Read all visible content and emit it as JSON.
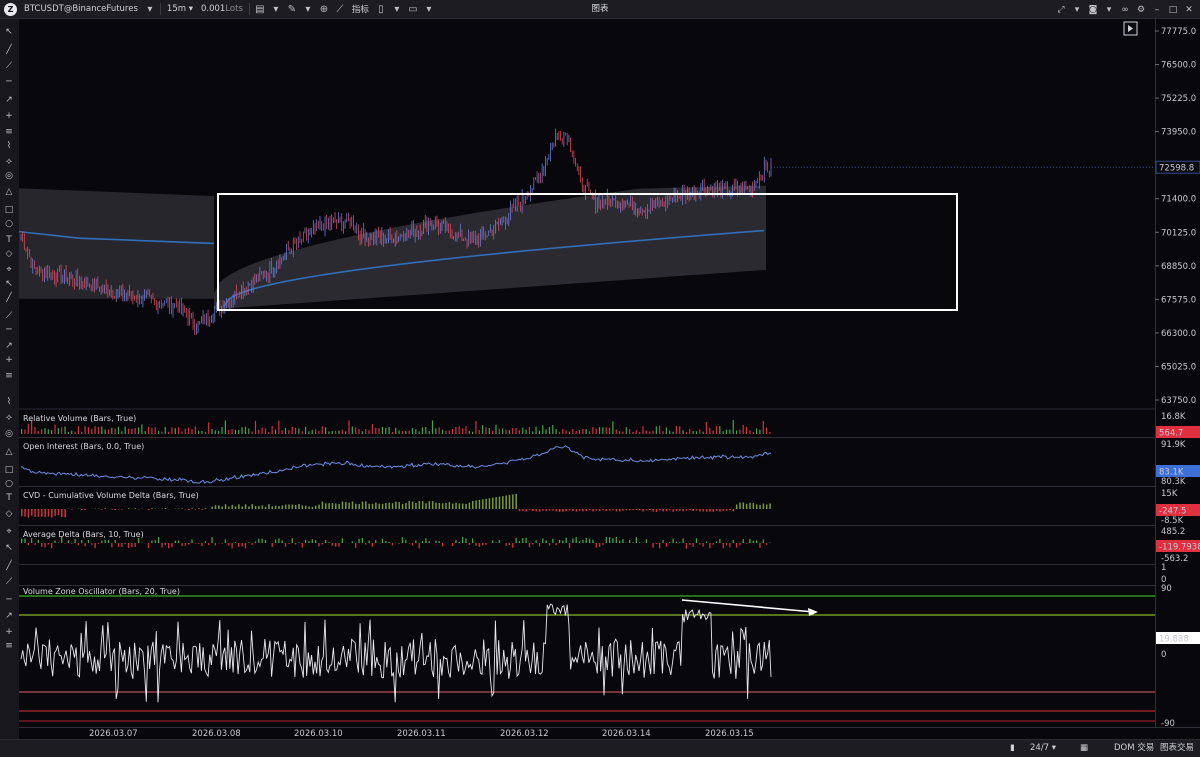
{
  "toolbar": {
    "symbol": "BTCUSDT@BinanceFutures",
    "timeframe": "15m",
    "lot_value": "0.001",
    "lot_unit": "Lots",
    "indicators_label": "指标",
    "window_title": "图表"
  },
  "price_axis": {
    "ticks": [
      "77775.0",
      "76500.0",
      "75225.0",
      "73950.0",
      "71400.0",
      "70125.0",
      "68850.0",
      "67575.0",
      "66300.0",
      "65025.0",
      "63750.0"
    ],
    "last_price": "72598.8",
    "last_price_color": "#c8283c"
  },
  "panes": {
    "relative_volume": {
      "title": "Relative Volume (Bars, True)",
      "axis_top": "16.8K",
      "current": "564.7",
      "current_color": "#e0303f"
    },
    "open_interest": {
      "title": "Open Interest (Bars, 0.0, True)",
      "axis_top": "91.9K",
      "current": "83.1K",
      "axis_bottom": "80.3K",
      "current_color": "#3c6fd8"
    },
    "cvd": {
      "title": "CVD - Cumulative Volume Delta (Bars, True)",
      "axis_top": "15K",
      "current": "-247.5",
      "axis_bottom": "-8.5K",
      "current_color": "#e0303f"
    },
    "average_delta": {
      "title": "Average Delta (Bars, 10, True)",
      "axis_top": "485.2",
      "current": "-119.7938",
      "axis_bottom": "-563.2",
      "current_color": "#e0303f"
    },
    "empty_pane": {
      "axis_top": "1",
      "axis_bottom": "0"
    },
    "vzo": {
      "title": "Volume Zone Oscillator (Bars, 20, True)",
      "axis_top": "90",
      "current": "19.888",
      "axis_zero": "0",
      "axis_bottom": "-90"
    }
  },
  "date_axis": [
    "2026.03.07",
    "2026.03.08",
    "2026.03.10",
    "2026.03.11",
    "2026.03.12",
    "2026.03.14",
    "2026.03.15"
  ],
  "statusbar": {
    "session": "24/7",
    "dom_label": "DOM 交易",
    "chart_trade_label": "图表交易"
  },
  "colors": {
    "background": "#0b0b12",
    "up_candle": "#6a7bd8",
    "down_candle": "#d84a5a",
    "vwap_line": "#2f6fb8",
    "vwap_band": "#2a2a30",
    "green_bar": "#3ea84a",
    "red_bar": "#d8303a",
    "olive_bar": "#7a9a3a",
    "vzo_line": "#e8e8ee",
    "green_level": "#3fd82a",
    "red_level": "#d8303a",
    "highlight_box": "#ffffff"
  },
  "icons": {
    "logo": "platform-logo-icon",
    "drawing_tools": [
      "cursor-icon",
      "line-icon",
      "ray-icon",
      "horizontal-line-icon",
      "arrow-icon",
      "cross-icon",
      "channel-icon",
      "pitchfork-icon",
      "fib-icon",
      "circle-icon",
      "triangle-icon",
      "rectangle-icon",
      "ellipse-icon",
      "text-icon",
      "price-label-icon",
      "magnet-icon"
    ]
  }
}
